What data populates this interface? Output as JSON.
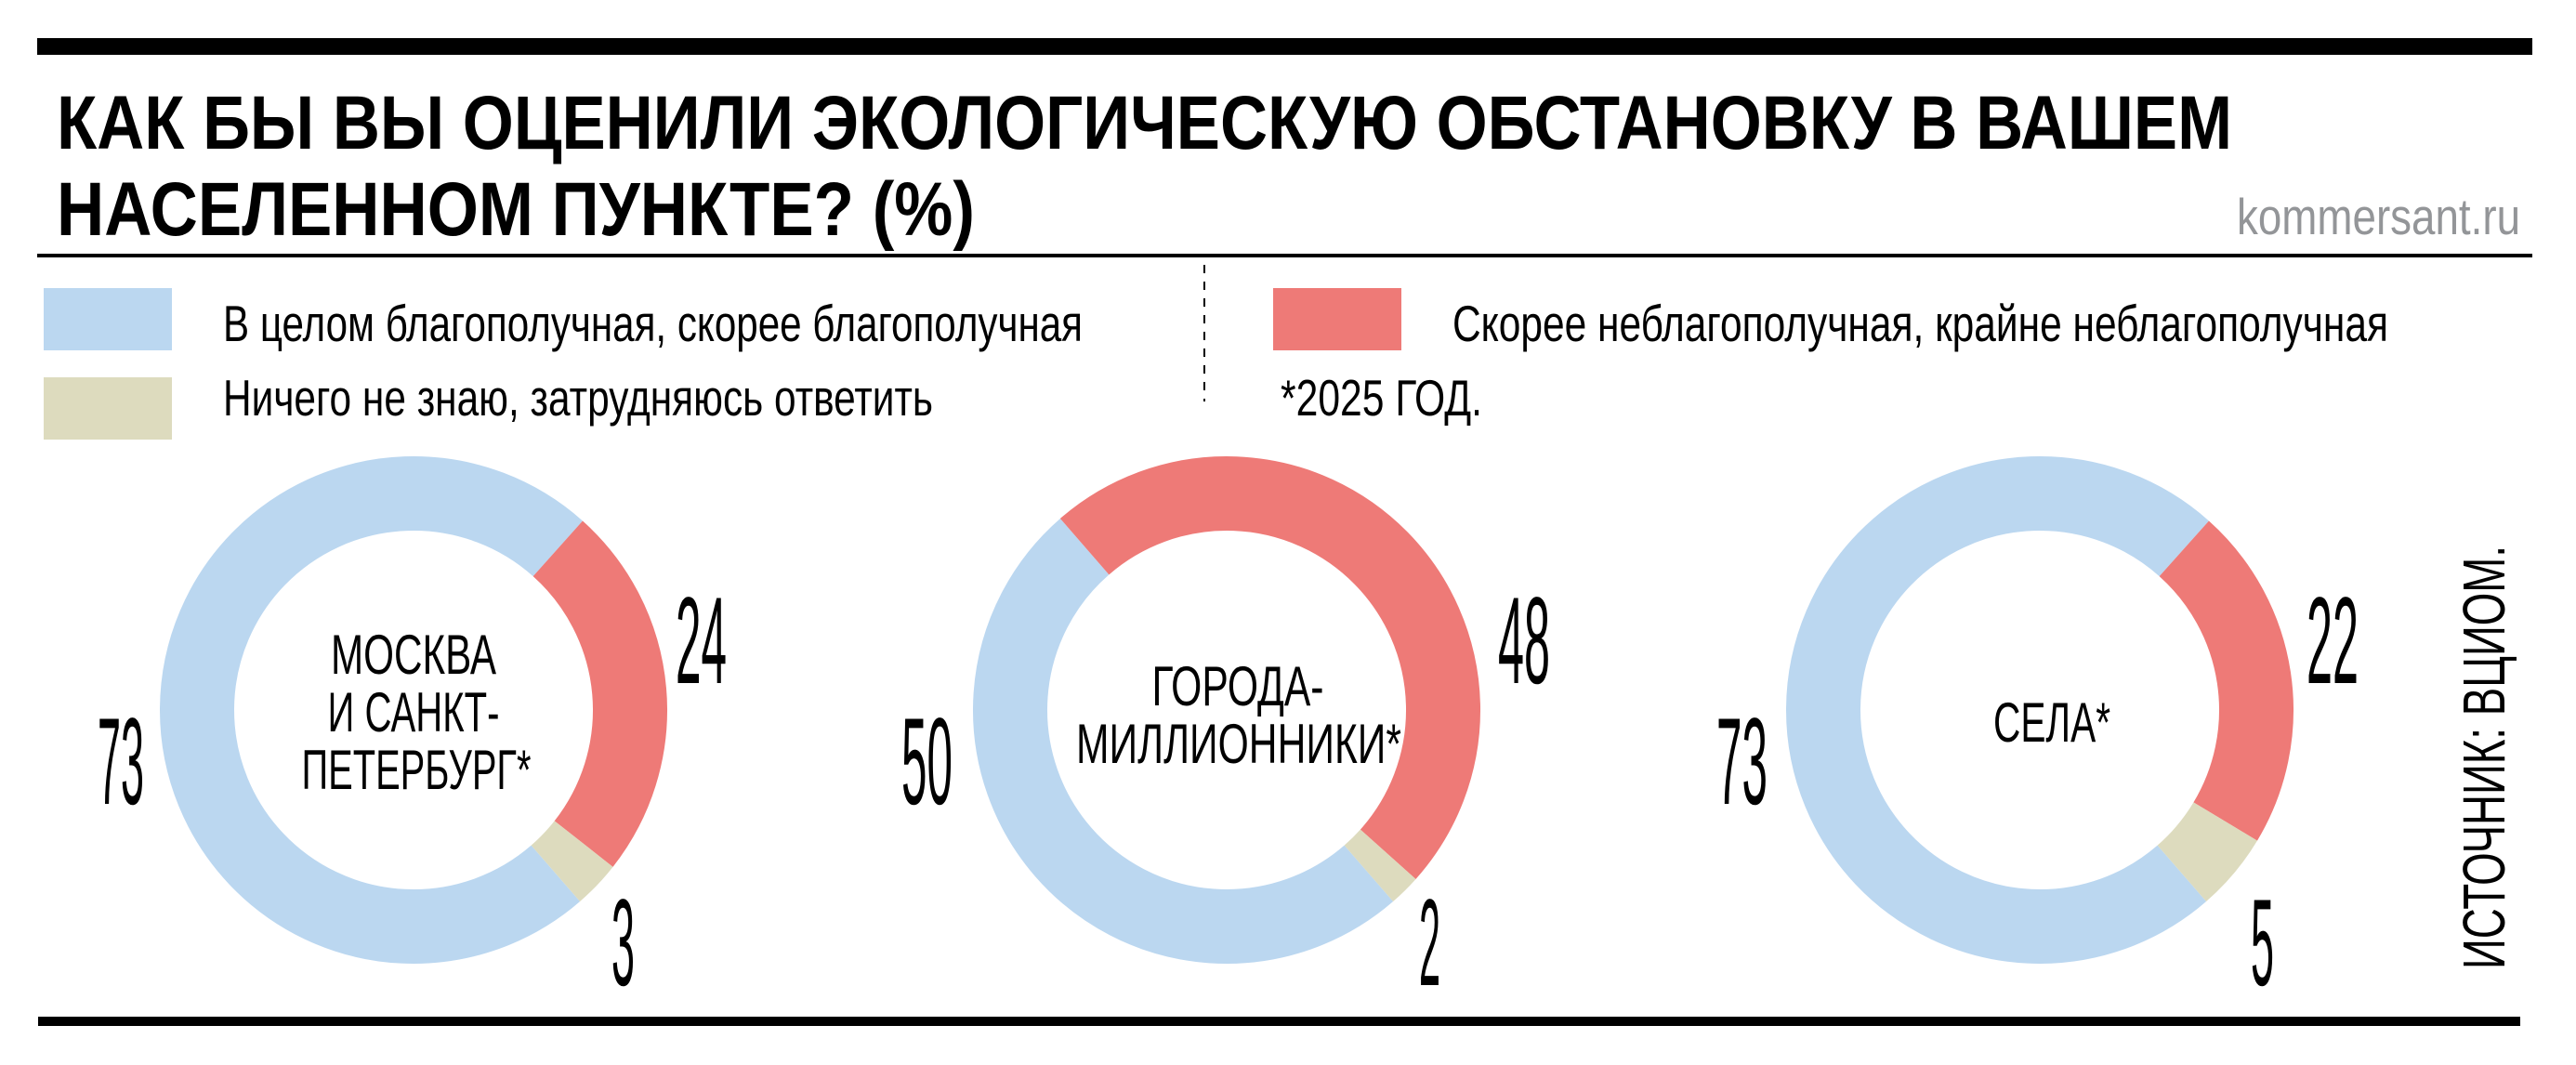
{
  "header": {
    "title_line1": "КАК БЫ ВЫ ОЦЕНИЛИ ЭКОЛОГИЧЕСКУЮ ОБСТАНОВКУ В ВАШЕМ",
    "title_line2": "НАСЕЛЕННОМ ПУНКТЕ? (%)",
    "brand": "kommersant.ru"
  },
  "legend": {
    "items": [
      {
        "label": "В целом благополучная, скорее благополучная",
        "color": "#BBD7F0"
      },
      {
        "label": "Ничего не знаю, затрудняюсь ответить",
        "color": "#DDDBBE"
      },
      {
        "label": "Скорее неблагополучная, крайне неблагополучная",
        "color": "#EE7A77"
      }
    ],
    "note": "*2025 ГОД."
  },
  "source": "ИСТОЧНИК: ВЦИОМ.",
  "colors": {
    "positive": "#BBD7F0",
    "unknown": "#DDDBBE",
    "negative": "#EE7A77",
    "rule": "#000000",
    "brand": "#939598"
  },
  "chart_data": [
    {
      "type": "pie",
      "title": "МОСКВА И САНКТ-ПЕТЕРБУРГ*",
      "center_lines": [
        "МОСКВА",
        "И САНКТ-",
        "ПЕТЕРБУРГ*"
      ],
      "categories": [
        "В целом благополучная, скорее благополучная",
        "Скорее неблагополучная, крайне неблагополучная",
        "Ничего не знаю, затрудняюсь ответить"
      ],
      "values": [
        73,
        24,
        3
      ],
      "labels": [
        "73",
        "24",
        "3"
      ],
      "donut": true,
      "unit": "%"
    },
    {
      "type": "pie",
      "title": "ГОРОДА-МИЛЛИОННИКИ*",
      "center_lines": [
        "ГОРОДА-",
        "МИЛЛИОННИКИ*"
      ],
      "categories": [
        "В целом благополучная, скорее благополучная",
        "Скорее неблагополучная, крайне неблагополучная",
        "Ничего не знаю, затрудняюсь ответить"
      ],
      "values": [
        50,
        48,
        2
      ],
      "labels": [
        "50",
        "48",
        "2"
      ],
      "donut": true,
      "unit": "%"
    },
    {
      "type": "pie",
      "title": "СЕЛА*",
      "center_lines": [
        "СЕЛА*"
      ],
      "categories": [
        "В целом благополучная, скорее благополучная",
        "Скорее неблагополучная, крайне неблагополучная",
        "Ничего не знаю, затрудняюсь ответить"
      ],
      "values": [
        73,
        22,
        5
      ],
      "labels": [
        "73",
        "22",
        "5"
      ],
      "donut": true,
      "unit": "%"
    }
  ]
}
